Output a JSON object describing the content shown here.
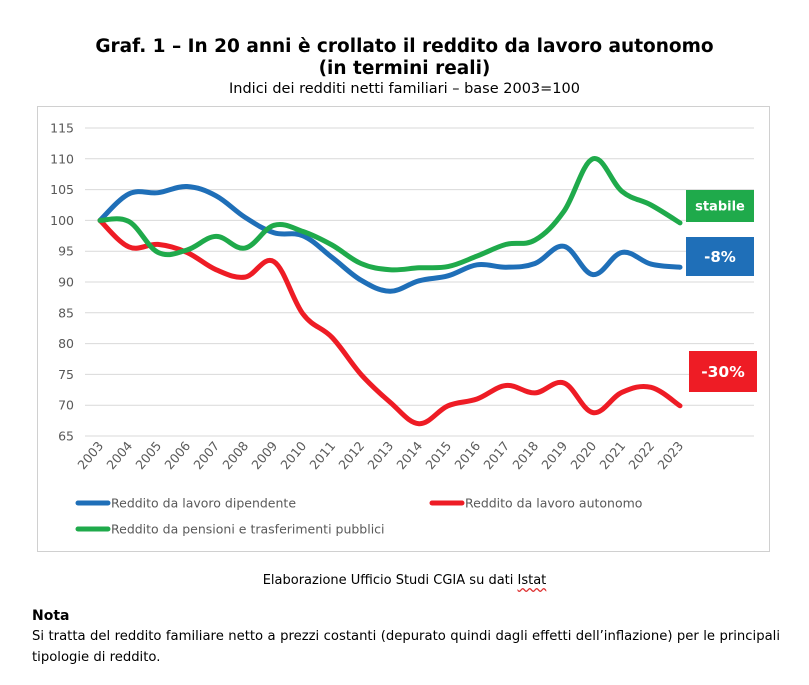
{
  "title_line1": "Graf. 1 – In 20 anni è crollato il reddito da lavoro autonomo",
  "title_line2": "(in termini reali)",
  "subtitle": "Indici dei redditi netti familiari – base 2003=100",
  "source_prefix": "Elaborazione Ufficio Studi CGIA su dati ",
  "source_istat": "Istat",
  "nota_title": "Nota",
  "nota_text": "Si tratta del reddito familiare netto a prezzi costanti (depurato quindi dagli effetti dell’inflazione) per le principali tipologie di reddito.",
  "chart_data": {
    "type": "line",
    "title": "",
    "xlabel": "",
    "ylabel": "",
    "x": [
      "2003",
      "2004",
      "2005",
      "2006",
      "2007",
      "2008",
      "2009",
      "2010",
      "2011",
      "2012",
      "2013",
      "2014",
      "2015",
      "2016",
      "2017",
      "2018",
      "2019",
      "2020",
      "2021",
      "2022",
      "2023"
    ],
    "ylim": [
      65,
      115
    ],
    "yticks": [
      65,
      70,
      75,
      80,
      85,
      90,
      95,
      100,
      105,
      110,
      115
    ],
    "grid": true,
    "legend_position": "bottom",
    "series": [
      {
        "name": "Reddito da lavoro dipendente",
        "color": "#1f6fb8",
        "values": [
          100,
          104.3,
          104.5,
          105.5,
          104,
          100.5,
          98,
          97.5,
          94,
          90.3,
          88.5,
          90.2,
          91,
          92.8,
          92.4,
          93,
          95.8,
          91.2,
          94.8,
          92.9,
          92.4
        ]
      },
      {
        "name": "Reddito da lavoro autonomo",
        "color": "#ee1c25",
        "values": [
          100,
          95.7,
          96.1,
          94.8,
          92,
          90.8,
          93.3,
          84.8,
          81,
          75,
          70.5,
          67,
          69.9,
          71,
          73.2,
          72,
          73.6,
          68.8,
          72.1,
          72.9,
          69.9
        ]
      },
      {
        "name": "Reddito da pensioni e trasferimenti pubblici",
        "color": "#1faa4b",
        "values": [
          100,
          99.8,
          94.8,
          95.2,
          97.4,
          95.5,
          99.2,
          98.2,
          96,
          93,
          92,
          92.3,
          92.5,
          94.2,
          96.1,
          96.8,
          101.5,
          110,
          104.7,
          102.5,
          99.6
        ]
      }
    ],
    "badges": [
      {
        "text": "stabile",
        "color": "#1faa4b"
      },
      {
        "text": "-8%",
        "color": "#1f6fb8"
      },
      {
        "text": "-30%",
        "color": "#ee1c25"
      }
    ]
  }
}
